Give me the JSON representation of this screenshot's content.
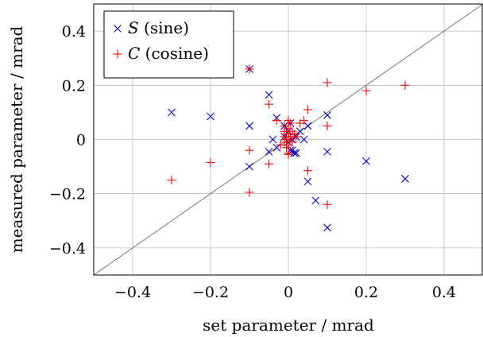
{
  "chart_data": {
    "type": "scatter",
    "xlabel": "set parameter / mrad",
    "ylabel": "measured parameter / mrad",
    "xlim": [
      -0.5,
      0.5
    ],
    "ylim": [
      -0.5,
      0.5
    ],
    "xticks": [
      -0.4,
      -0.2,
      0,
      0.2,
      0.4
    ],
    "yticks": [
      -0.4,
      -0.2,
      0,
      0.2,
      0.4
    ],
    "xtick_labels": [
      "−0.4",
      "−0.2",
      "0",
      "0.2",
      "0.4"
    ],
    "ytick_labels": [
      "−0.4",
      "−0.2",
      "0",
      "0.2",
      "0.4"
    ],
    "grid": true,
    "reference_line": "y = x",
    "legend_position": "top-left",
    "series": [
      {
        "name_main": "S",
        "name_detail": " (sine)",
        "marker": "x",
        "color": "#0000cc",
        "points": [
          [
            -0.3,
            0.1
          ],
          [
            -0.2,
            0.085
          ],
          [
            -0.1,
            0.26
          ],
          [
            -0.1,
            0.05
          ],
          [
            -0.1,
            -0.1
          ],
          [
            -0.05,
            0.165
          ],
          [
            -0.05,
            -0.045
          ],
          [
            -0.04,
            0.0
          ],
          [
            -0.03,
            0.08
          ],
          [
            -0.03,
            -0.03
          ],
          [
            -0.01,
            0.05
          ],
          [
            -0.01,
            0.01
          ],
          [
            0.0,
            0.03
          ],
          [
            0.0,
            -0.01
          ],
          [
            0.005,
            0.06
          ],
          [
            0.005,
            -0.04
          ],
          [
            0.01,
            0.0
          ],
          [
            0.01,
            -0.04
          ],
          [
            0.015,
            -0.05
          ],
          [
            0.02,
            -0.05
          ],
          [
            0.02,
            0.01
          ],
          [
            0.03,
            0.03
          ],
          [
            0.04,
            0.0
          ],
          [
            0.05,
            0.05
          ],
          [
            0.05,
            -0.155
          ],
          [
            0.07,
            -0.225
          ],
          [
            0.1,
            0.09
          ],
          [
            0.1,
            -0.045
          ],
          [
            0.1,
            -0.325
          ],
          [
            0.2,
            -0.08
          ],
          [
            0.3,
            -0.145
          ]
        ]
      },
      {
        "name_main": "C",
        "name_detail": " (cosine)",
        "marker": "+",
        "color": "#ff0000",
        "points": [
          [
            -0.3,
            -0.15
          ],
          [
            -0.2,
            -0.085
          ],
          [
            -0.1,
            0.26
          ],
          [
            -0.1,
            -0.04
          ],
          [
            -0.1,
            -0.195
          ],
          [
            -0.05,
            0.13
          ],
          [
            -0.05,
            -0.09
          ],
          [
            -0.03,
            0.07
          ],
          [
            -0.02,
            -0.02
          ],
          [
            -0.01,
            0.05
          ],
          [
            -0.01,
            0.03
          ],
          [
            -0.01,
            0.01
          ],
          [
            -0.01,
            -0.01
          ],
          [
            -0.005,
            0.02
          ],
          [
            -0.005,
            -0.03
          ],
          [
            -0.005,
            0.0
          ],
          [
            0.0,
            0.07
          ],
          [
            0.0,
            0.04
          ],
          [
            0.0,
            0.02
          ],
          [
            0.0,
            0.0
          ],
          [
            0.0,
            -0.02
          ],
          [
            0.0,
            -0.05
          ],
          [
            0.0,
            -0.055
          ],
          [
            0.005,
            0.06
          ],
          [
            0.005,
            0.01
          ],
          [
            0.01,
            -0.01
          ],
          [
            0.01,
            0.03
          ],
          [
            0.015,
            0.02
          ],
          [
            0.02,
            0.01
          ],
          [
            0.03,
            0.06
          ],
          [
            0.04,
            0.07
          ],
          [
            0.05,
            0.11
          ],
          [
            0.05,
            -0.115
          ],
          [
            0.1,
            0.21
          ],
          [
            0.1,
            0.05
          ],
          [
            0.1,
            -0.24
          ],
          [
            0.2,
            0.18
          ],
          [
            0.3,
            0.2
          ]
        ]
      }
    ]
  }
}
